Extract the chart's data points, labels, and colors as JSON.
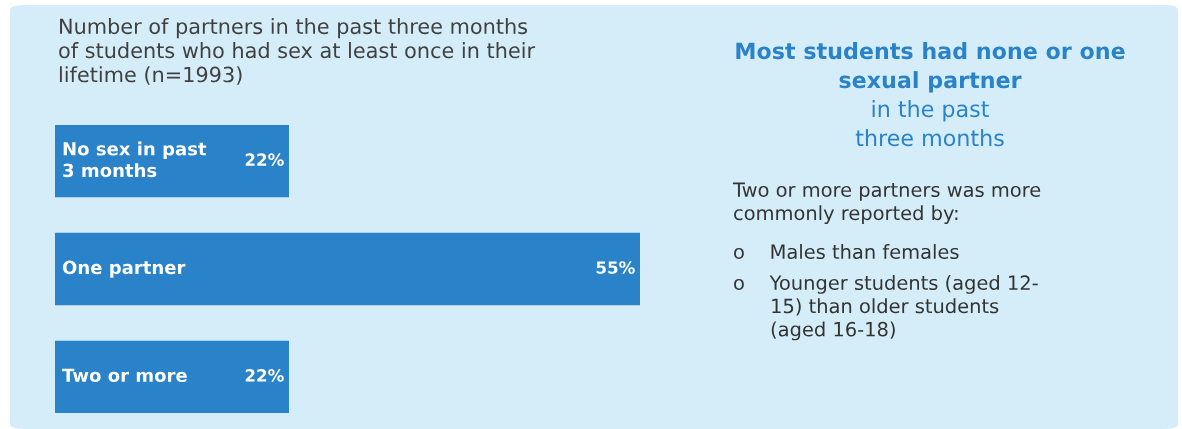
{
  "chart_data": [
    {
      "type": "bar",
      "orientation": "horizontal",
      "title": "Number of partners in the past three months\nof students who had sex at least once in their\nlifetime (n=1993)",
      "categories": [
        "No sex in past\n3 months",
        "One partner",
        "Two or more"
      ],
      "values": [
        22,
        55,
        22
      ],
      "value_labels": [
        "22%",
        "55%",
        "22%"
      ],
      "color": "#2a82c9"
    },
    {
      "type": "other",
      "title": "Most students had none or one\nsexual partner",
      "subtitle": "in the past\nthree months",
      "annotations": [
        "Two or more partners was more\ncommonly reported by:",
        "o    Males than females",
        "o    Younger students (aged 12-\n      15) than older students\n      (aged 16-18)"
      ]
    }
  ]
}
